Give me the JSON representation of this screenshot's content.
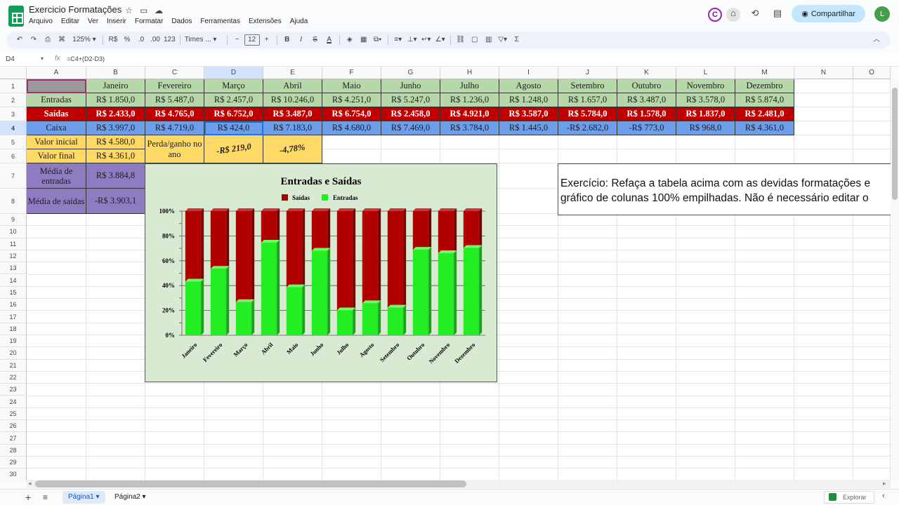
{
  "app": {
    "doc_title": "Exercicio Formatações",
    "menus": [
      "Arquivo",
      "Editar",
      "Ver",
      "Inserir",
      "Formatar",
      "Dados",
      "Ferramentas",
      "Extensões",
      "Ajuda"
    ],
    "share_label": "Compartilhar",
    "avatar_letter": "L"
  },
  "toolbar": {
    "zoom": "125%",
    "currency": "R$",
    "percent": "%",
    "dec_less": ".0",
    "dec_more": ".00",
    "numfmt": "123",
    "font": "Times ...",
    "font_size": "12",
    "bold": "B",
    "italic": "I",
    "strike": "S",
    "text_color": "A",
    "sum": "Σ"
  },
  "formula_bar": {
    "cell_ref": "D4",
    "formula": "=C4+(D2-D3)"
  },
  "columns": [
    "A",
    "B",
    "C",
    "D",
    "E",
    "F",
    "G",
    "H",
    "I",
    "J",
    "K",
    "L",
    "M",
    "N",
    "O"
  ],
  "rows": [
    "1",
    "2",
    "3",
    "4",
    "5",
    "6",
    "7",
    "8",
    "9",
    "10",
    "11",
    "12",
    "13",
    "14",
    "15",
    "16",
    "17",
    "18",
    "19",
    "20",
    "21",
    "22",
    "23",
    "24",
    "25",
    "26",
    "27",
    "28",
    "29",
    "30"
  ],
  "table": {
    "months": [
      "Janeiro",
      "Fevereiro",
      "Março",
      "Abril",
      "Maio",
      "Junho",
      "Julho",
      "Agosto",
      "Setembro",
      "Outubro",
      "Novembro",
      "Dezembro"
    ],
    "entradas_label": "Entradas",
    "entradas": [
      "R$ 1.850,0",
      "R$ 5.487,0",
      "R$ 2.457,0",
      "R$ 10.246,0",
      "R$ 4.251,0",
      "R$ 5.247,0",
      "R$ 1.236,0",
      "R$ 1.248,0",
      "R$ 1.657,0",
      "R$ 3.487,0",
      "R$ 3.578,0",
      "R$ 5.874,0"
    ],
    "saidas_label": "Saídas",
    "saidas": [
      "R$ 2.433,0",
      "R$ 4.765,0",
      "R$ 6.752,0",
      "R$ 3.487,0",
      "R$ 6.754,0",
      "R$ 2.458,0",
      "R$ 4.921,0",
      "R$ 3.587,0",
      "R$ 5.784,0",
      "R$ 1.578,0",
      "R$ 1.837,0",
      "R$ 2.481,0"
    ],
    "caixa_label": "Caixa",
    "caixa": [
      "R$ 3.997,0",
      "R$ 4.719,0",
      "R$ 424,0",
      "R$ 7.183,0",
      "R$ 4.680,0",
      "R$ 7.469,0",
      "R$ 3.784,0",
      "R$ 1.445,0",
      "-R$ 2.682,0",
      "-R$ 773,0",
      "R$ 968,0",
      "R$ 4.361,0"
    ],
    "valor_inicial_label": "Valor inicial",
    "valor_inicial": "R$ 4.580,0",
    "valor_final_label": "Valor final",
    "valor_final": "R$ 4.361,0",
    "media_entradas_label": "Média de entradas",
    "media_entradas": "R$ 3.884,8",
    "media_saidas_label": "Média de saídas",
    "media_saidas": "-R$ 3.903,1",
    "perda_label": "Perda/ganho no ano",
    "perda_valor": "-R$ 219,0",
    "perda_pct": "-4,78%"
  },
  "chart_data": {
    "type": "bar",
    "title": "Entradas e Saídas",
    "stacked": "100%",
    "categories": [
      "Janeiro",
      "Fevereiro",
      "Março",
      "Abril",
      "Maio",
      "Junho",
      "Julho",
      "Agosto",
      "Setembro",
      "Outubro",
      "Novembro",
      "Dezembro"
    ],
    "series": [
      {
        "name": "Saídas",
        "values": [
          2433,
          4765,
          6752,
          3487,
          6754,
          2458,
          4921,
          3587,
          5784,
          1578,
          1837,
          2481
        ],
        "color": "#b00000"
      },
      {
        "name": "Entradas",
        "values": [
          1850,
          5487,
          2457,
          10246,
          4251,
          5247,
          1236,
          1248,
          1657,
          3487,
          3578,
          5874
        ],
        "color": "#22ee22"
      }
    ],
    "yticks": [
      "0%",
      "20%",
      "40%",
      "60%",
      "80%",
      "100%"
    ],
    "ylim": [
      0,
      100
    ],
    "legend": "top",
    "background": "#d9ead3"
  },
  "textbox": {
    "line1": "Exercício: Refaça a tabela acima com as devidas formatações e",
    "line2": "gráfico de colunas 100% empilhadas. Não é necessário editar o"
  },
  "sheets": [
    "Página1",
    "Página2"
  ],
  "explore_label": "Explorar"
}
